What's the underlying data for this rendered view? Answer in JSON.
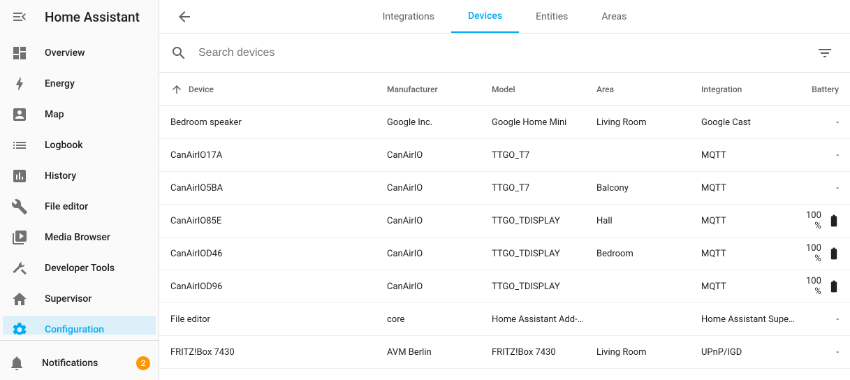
{
  "app": {
    "title": "Home Assistant"
  },
  "sidebar": {
    "items": [
      {
        "label": "Overview",
        "icon": "dashboard"
      },
      {
        "label": "Energy",
        "icon": "bolt"
      },
      {
        "label": "Map",
        "icon": "account-box"
      },
      {
        "label": "Logbook",
        "icon": "list"
      },
      {
        "label": "History",
        "icon": "chart"
      },
      {
        "label": "File editor",
        "icon": "wrench"
      },
      {
        "label": "Media Browser",
        "icon": "play"
      },
      {
        "label": "Developer Tools",
        "icon": "hammer"
      },
      {
        "label": "Supervisor",
        "icon": "ha"
      },
      {
        "label": "Configuration",
        "icon": "cog",
        "active": true
      }
    ],
    "notifications": {
      "label": "Notifications",
      "badge": "2"
    }
  },
  "tabs": [
    {
      "label": "Integrations"
    },
    {
      "label": "Devices",
      "active": true
    },
    {
      "label": "Entities"
    },
    {
      "label": "Areas"
    }
  ],
  "search": {
    "placeholder": "Search devices"
  },
  "columns": {
    "device": "Device",
    "manufacturer": "Manufacturer",
    "model": "Model",
    "area": "Area",
    "integration": "Integration",
    "battery": "Battery"
  },
  "rows": [
    {
      "device": "Bedroom speaker",
      "manufacturer": "Google Inc.",
      "model": "Google Home Mini",
      "area": "Living Room",
      "integration": "Google Cast",
      "battery": "-"
    },
    {
      "device": "CanAirIO17A",
      "manufacturer": "CanAirIO",
      "model": "TTGO_T7",
      "area": "",
      "integration": "MQTT",
      "battery": "-"
    },
    {
      "device": "CanAirIO5BA",
      "manufacturer": "CanAirIO",
      "model": "TTGO_T7",
      "area": "Balcony",
      "integration": "MQTT",
      "battery": "-"
    },
    {
      "device": "CanAirIO85E",
      "manufacturer": "CanAirIO",
      "model": "TTGO_TDISPLAY",
      "area": "Hall",
      "integration": "MQTT",
      "battery": "100 %",
      "batteryIcon": true
    },
    {
      "device": "CanAirIOD46",
      "manufacturer": "CanAirIO",
      "model": "TTGO_TDISPLAY",
      "area": "Bedroom",
      "integration": "MQTT",
      "battery": "100 %",
      "batteryIcon": true
    },
    {
      "device": "CanAirIOD96",
      "manufacturer": "CanAirIO",
      "model": "TTGO_TDISPLAY",
      "area": "",
      "integration": "MQTT",
      "battery": "100 %",
      "batteryIcon": true
    },
    {
      "device": "File editor",
      "manufacturer": "core",
      "model": "Home Assistant Add-…",
      "area": "",
      "integration": "Home Assistant Supe…",
      "battery": "-"
    },
    {
      "device": "FRITZ!Box 7430",
      "manufacturer": "AVM Berlin",
      "model": "FRITZ!Box 7430",
      "area": "Living Room",
      "integration": "UPnP/IGD",
      "battery": "-"
    }
  ],
  "colors": {
    "accent": "#03a9f4",
    "badge": "#ff9800",
    "iconGrey": "#727272",
    "text": "#212121",
    "divider": "#e0e0e0"
  }
}
